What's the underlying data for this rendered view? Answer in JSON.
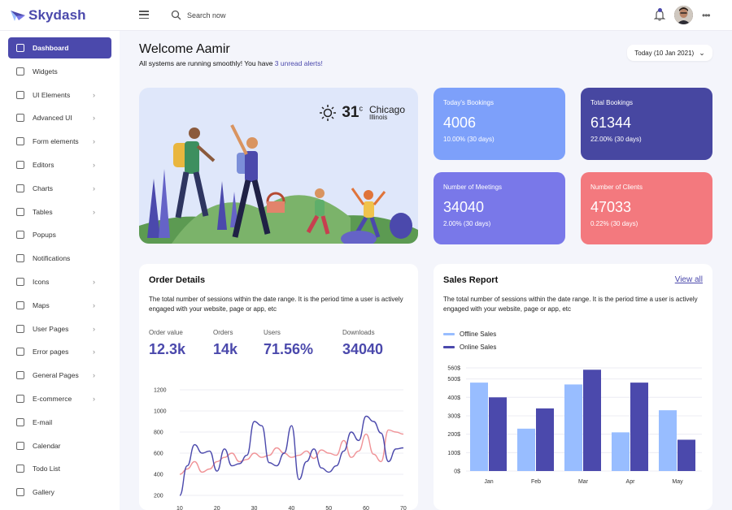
{
  "app": {
    "name": "Skydash"
  },
  "header": {
    "search_placeholder": "Search now",
    "more": "•••"
  },
  "sidebar": {
    "items": [
      {
        "label": "Dashboard",
        "icon": "grid-icon",
        "active": true,
        "chevron": false
      },
      {
        "label": "Widgets",
        "icon": "gear-icon",
        "chevron": false
      },
      {
        "label": "UI Elements",
        "icon": "layout-icon",
        "chevron": true
      },
      {
        "label": "Advanced UI",
        "icon": "image-icon",
        "chevron": true
      },
      {
        "label": "Form elements",
        "icon": "columns-icon",
        "chevron": true
      },
      {
        "label": "Editors",
        "icon": "loader-icon",
        "chevron": true
      },
      {
        "label": "Charts",
        "icon": "bar-chart-icon",
        "chevron": true
      },
      {
        "label": "Tables",
        "icon": "table-icon",
        "chevron": true
      },
      {
        "label": "Popups",
        "icon": "external-link-icon",
        "chevron": false
      },
      {
        "label": "Notifications",
        "icon": "rotate-icon",
        "chevron": false
      },
      {
        "label": "Icons",
        "icon": "move-icon",
        "chevron": true
      },
      {
        "label": "Maps",
        "icon": "map-icon",
        "chevron": true
      },
      {
        "label": "User Pages",
        "icon": "user-icon",
        "chevron": true
      },
      {
        "label": "Error pages",
        "icon": "slash-icon",
        "chevron": true
      },
      {
        "label": "General Pages",
        "icon": "book-icon",
        "chevron": true
      },
      {
        "label": "E-commerce",
        "icon": "tag-icon",
        "chevron": true
      },
      {
        "label": "E-mail",
        "icon": "mail-icon",
        "chevron": false
      },
      {
        "label": "Calendar",
        "icon": "watch-icon",
        "chevron": false
      },
      {
        "label": "Todo List",
        "icon": "list-icon",
        "chevron": false
      },
      {
        "label": "Gallery",
        "icon": "image-icon",
        "chevron": false
      }
    ]
  },
  "welcome": {
    "title": "Welcome Aamir",
    "subtitle_prefix": "All systems are running smoothly! You have ",
    "alert_link": "3 unread alerts!",
    "date_button": "Today (10 Jan 2021)"
  },
  "weather": {
    "temp": "31",
    "unit": "c",
    "city": "Chicago",
    "state": "Illinois"
  },
  "stats": [
    {
      "label": "Today's Bookings",
      "value": "4006",
      "change": "10.00% (30 days)",
      "color": "#7da0fa"
    },
    {
      "label": "Total Bookings",
      "value": "61344",
      "change": "22.00% (30 days)",
      "color": "#4747a1"
    },
    {
      "label": "Number of Meetings",
      "value": "34040",
      "change": "2.00% (30 days)",
      "color": "#7978e9"
    },
    {
      "label": "Number of Clients",
      "value": "47033",
      "change": "0.22% (30 days)",
      "color": "#f3797e"
    }
  ],
  "order_details": {
    "title": "Order Details",
    "description": "The total number of sessions within the date range. It is the period time a user is actively engaged with your website, page or app, etc",
    "metrics": [
      {
        "label": "Order value",
        "value": "12.3k"
      },
      {
        "label": "Orders",
        "value": "14k"
      },
      {
        "label": "Users",
        "value": "71.56%"
      },
      {
        "label": "Downloads",
        "value": "34040"
      }
    ]
  },
  "sales_report": {
    "title": "Sales Report",
    "view_all": "View all",
    "description": "The total number of sessions within the date range. It is the period time a user is actively engaged with your website, page or app, etc"
  },
  "colors": {
    "primary": "#4b49ac",
    "offline": "#98bdff",
    "online": "#4b49ac",
    "order_pink": "#f09397"
  },
  "chart_data": [
    {
      "type": "line",
      "x": [
        10,
        12,
        14,
        16,
        18,
        20,
        22,
        24,
        26,
        28,
        30,
        32,
        34,
        36,
        38,
        40,
        42,
        44,
        46,
        48,
        50,
        52,
        54,
        56,
        58,
        60,
        62,
        64,
        66,
        68,
        70
      ],
      "xlim": [
        10,
        70
      ],
      "ylim": [
        200,
        1200
      ],
      "yticks": [
        200,
        400,
        600,
        800,
        1000,
        1200
      ],
      "xticks": [
        10,
        20,
        30,
        40,
        50,
        60,
        70
      ],
      "grid": true,
      "series": [
        {
          "values": [
            200,
            480,
            680,
            600,
            620,
            430,
            640,
            480,
            500,
            580,
            900,
            860,
            510,
            480,
            600,
            860,
            350,
            520,
            640,
            460,
            420,
            480,
            620,
            800,
            720,
            950,
            900,
            790,
            520,
            640,
            650
          ],
          "color": "#4b49ac"
        },
        {
          "values": [
            400,
            450,
            520,
            420,
            450,
            520,
            560,
            600,
            520,
            540,
            600,
            560,
            580,
            650,
            600,
            560,
            580,
            620,
            550,
            630,
            600,
            580,
            720,
            560,
            620,
            780,
            590,
            520,
            820,
            800,
            780
          ],
          "color": "#f09397"
        }
      ]
    },
    {
      "type": "bar",
      "categories": [
        "Jan",
        "Feb",
        "Mar",
        "Apr",
        "May"
      ],
      "ylim": [
        0,
        560
      ],
      "yticks": [
        "0$",
        "100$",
        "200$",
        "300$",
        "400$",
        "500$",
        "560$"
      ],
      "legend": "top-left",
      "series": [
        {
          "name": "Offline Sales",
          "values": [
            480,
            230,
            470,
            210,
            330
          ],
          "color": "#98bdff"
        },
        {
          "name": "Online Sales",
          "values": [
            400,
            340,
            550,
            480,
            170
          ],
          "color": "#4b49ac"
        }
      ]
    }
  ]
}
